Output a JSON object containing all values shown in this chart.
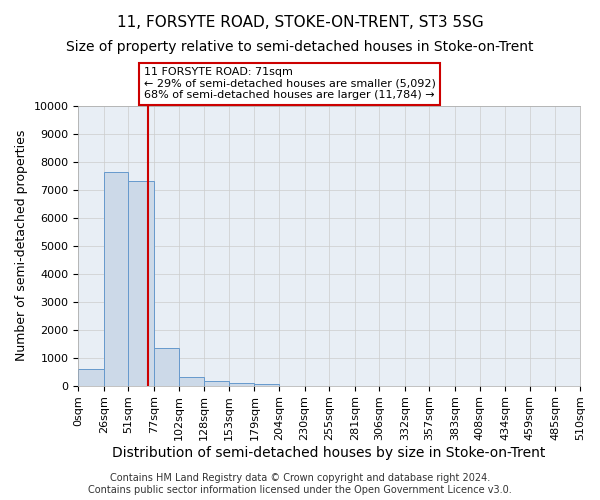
{
  "title1": "11, FORSYTE ROAD, STOKE-ON-TRENT, ST3 5SG",
  "title2": "Size of property relative to semi-detached houses in Stoke-on-Trent",
  "xlabel": "Distribution of semi-detached houses by size in Stoke-on-Trent",
  "ylabel": "Number of semi-detached properties",
  "footer1": "Contains HM Land Registry data © Crown copyright and database right 2024.",
  "footer2": "Contains public sector information licensed under the Open Government Licence v3.0.",
  "bin_labels": [
    "0sqm",
    "26sqm",
    "51sqm",
    "77sqm",
    "102sqm",
    "128sqm",
    "153sqm",
    "179sqm",
    "204sqm",
    "230sqm",
    "255sqm",
    "281sqm",
    "306sqm",
    "332sqm",
    "357sqm",
    "383sqm",
    "408sqm",
    "434sqm",
    "459sqm",
    "485sqm",
    "510sqm"
  ],
  "bin_edges": [
    0,
    26,
    51,
    77,
    102,
    128,
    153,
    179,
    204,
    230,
    255,
    281,
    306,
    332,
    357,
    383,
    408,
    434,
    459,
    485,
    510
  ],
  "bar_heights": [
    580,
    7650,
    7300,
    1350,
    320,
    170,
    100,
    50,
    0,
    0,
    0,
    0,
    0,
    0,
    0,
    0,
    0,
    0,
    0,
    0
  ],
  "bar_color": "#ccd9e8",
  "bar_edge_color": "#6699cc",
  "property_sqm": 71,
  "vline_color": "#cc0000",
  "annotation_line1": "11 FORSYTE ROAD: 71sqm",
  "annotation_line2": "← 29% of semi-detached houses are smaller (5,092)",
  "annotation_line3": "68% of semi-detached houses are larger (11,784) →",
  "annotation_box_color": "#ffffff",
  "annotation_box_edge": "#cc0000",
  "ylim": [
    0,
    10000
  ],
  "yticks": [
    0,
    1000,
    2000,
    3000,
    4000,
    5000,
    6000,
    7000,
    8000,
    9000,
    10000
  ],
  "grid_color": "#cccccc",
  "bg_color": "#e8eef5",
  "title1_fontsize": 11,
  "title2_fontsize": 10,
  "axis_label_fontsize": 9,
  "tick_fontsize": 8,
  "footer_fontsize": 7
}
